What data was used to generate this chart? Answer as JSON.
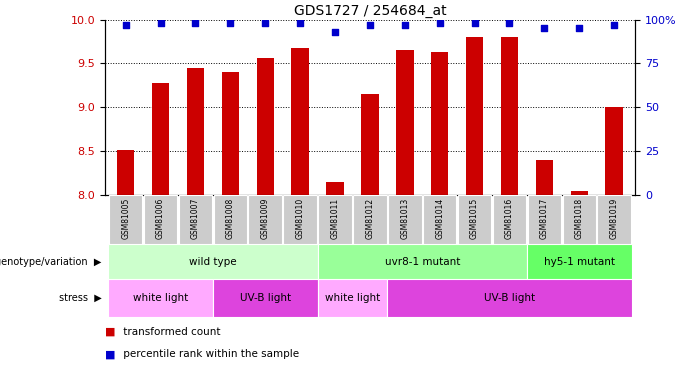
{
  "title": "GDS1727 / 254684_at",
  "samples": [
    "GSM81005",
    "GSM81006",
    "GSM81007",
    "GSM81008",
    "GSM81009",
    "GSM81010",
    "GSM81011",
    "GSM81012",
    "GSM81013",
    "GSM81014",
    "GSM81015",
    "GSM81016",
    "GSM81017",
    "GSM81018",
    "GSM81019"
  ],
  "bar_values": [
    8.51,
    9.28,
    9.45,
    9.4,
    9.56,
    9.67,
    8.15,
    9.15,
    9.65,
    9.63,
    9.8,
    9.8,
    8.4,
    8.05,
    9.0
  ],
  "percentile_values": [
    97,
    98,
    98,
    98,
    98,
    98,
    93,
    97,
    97,
    98,
    98,
    98,
    95,
    95,
    97
  ],
  "bar_color": "#cc0000",
  "dot_color": "#0000cc",
  "ylim_left": [
    8.0,
    10.0
  ],
  "ylim_right": [
    0,
    100
  ],
  "yticks_left": [
    8.0,
    8.5,
    9.0,
    9.5,
    10.0
  ],
  "yticks_right": [
    0,
    25,
    50,
    75,
    100
  ],
  "ytick_labels_right": [
    "0",
    "25",
    "50",
    "75",
    "100%"
  ],
  "genotype_groups": [
    {
      "label": "wild type",
      "start": 0,
      "end": 5,
      "color": "#ccffcc"
    },
    {
      "label": "uvr8-1 mutant",
      "start": 6,
      "end": 11,
      "color": "#99ff99"
    },
    {
      "label": "hy5-1 mutant",
      "start": 12,
      "end": 14,
      "color": "#66ff66"
    }
  ],
  "stress_groups": [
    {
      "label": "white light",
      "start": 0,
      "end": 2,
      "color": "#ffaaff"
    },
    {
      "label": "UV-B light",
      "start": 3,
      "end": 5,
      "color": "#dd44dd"
    },
    {
      "label": "white light",
      "start": 6,
      "end": 7,
      "color": "#ffaaff"
    },
    {
      "label": "UV-B light",
      "start": 8,
      "end": 14,
      "color": "#dd44dd"
    }
  ],
  "sample_box_color": "#cccccc",
  "bar_width": 0.5
}
